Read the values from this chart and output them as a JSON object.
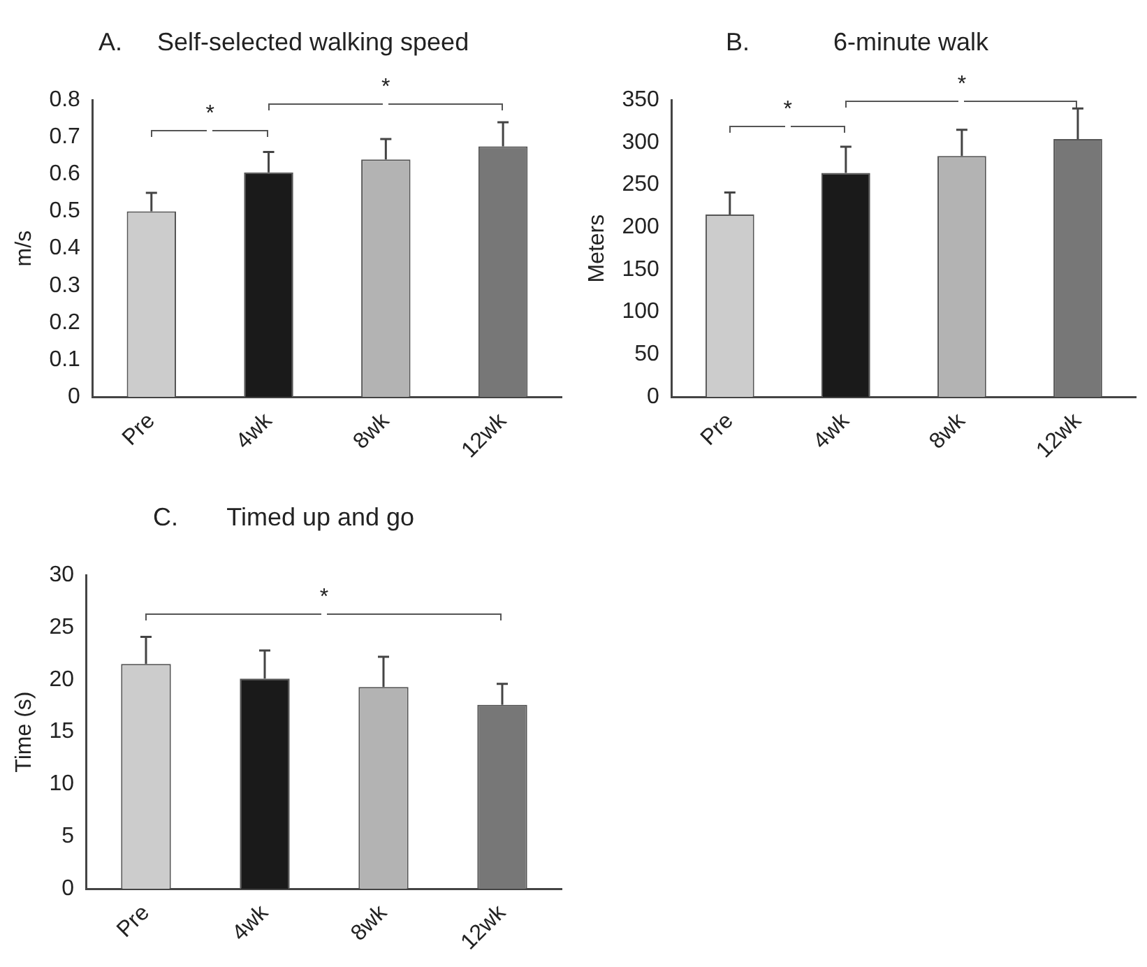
{
  "chart_data": [
    {
      "type": "bar",
      "title": "A.     Self-selected walking speed",
      "ylabel": "m/s",
      "categories": [
        "Pre",
        "4wk",
        "8wk",
        "12wk"
      ],
      "values": [
        0.5,
        0.605,
        0.64,
        0.675
      ],
      "colors": [
        "#cccccc",
        "#1a1a1a",
        "#b3b3b3",
        "#777777"
      ],
      "errors": [
        [
          0.5,
          0.55
        ],
        [
          0.605,
          0.66
        ],
        [
          0.64,
          0.695
        ],
        [
          0.675,
          0.74
        ]
      ],
      "ylim": [
        0,
        0.8
      ],
      "yticks": [
        0,
        0.1,
        0.2,
        0.3,
        0.4,
        0.5,
        0.6,
        0.7,
        0.8
      ],
      "annotations": [
        "*",
        "*"
      ]
    },
    {
      "type": "bar",
      "title": "B.            6-minute walk",
      "ylabel": "Meters",
      "categories": [
        "Pre",
        "4wk",
        "8wk",
        "12wk"
      ],
      "values": [
        215,
        264,
        284,
        304
      ],
      "colors": [
        "#cccccc",
        "#1a1a1a",
        "#b3b3b3",
        "#777777"
      ],
      "errors": [
        [
          215,
          241
        ],
        [
          264,
          295
        ],
        [
          284,
          315
        ],
        [
          304,
          340
        ]
      ],
      "ylim": [
        0,
        350
      ],
      "yticks": [
        0,
        50,
        100,
        150,
        200,
        250,
        300,
        350
      ],
      "annotations": [
        "*",
        "*"
      ]
    },
    {
      "type": "bar",
      "title": "C.       Timed up and go",
      "ylabel": "Time (s)",
      "categories": [
        "Pre",
        "4wk",
        "8wk",
        "12wk"
      ],
      "values": [
        21.5,
        20.1,
        19.3,
        17.6
      ],
      "colors": [
        "#cccccc",
        "#1a1a1a",
        "#b3b3b3",
        "#777777"
      ],
      "errors": [
        [
          21.5,
          24.1
        ],
        [
          20.1,
          22.8
        ],
        [
          19.3,
          22.2
        ],
        [
          17.6,
          19.6
        ]
      ],
      "ylim": [
        0,
        30
      ],
      "yticks": [
        0,
        5,
        10,
        15,
        20,
        25,
        30
      ],
      "annotations": [
        "*"
      ]
    }
  ]
}
